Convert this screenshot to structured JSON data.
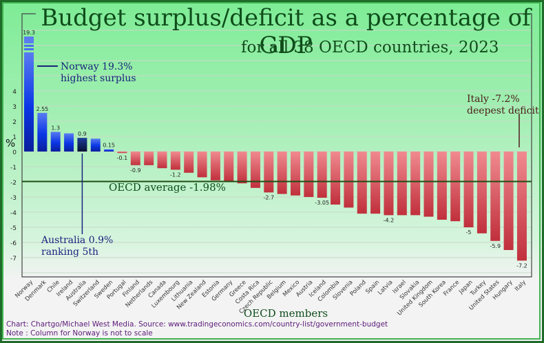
{
  "chart_data": {
    "type": "bar",
    "title": "Budget surplus/deficit as a percentage of GDP",
    "subtitle": "for all 38 OECD countries, 2023",
    "xlabel": "OECD members",
    "ylabel": "%",
    "ylim": [
      -8,
      5
    ],
    "yticks": [
      4,
      3,
      2,
      1,
      0,
      -1,
      -2,
      -3,
      -4,
      -5,
      -6,
      -7
    ],
    "grid": true,
    "categories": [
      "Norway",
      "Denmark",
      "Chile",
      "Ireland",
      "Australia",
      "Switzerland",
      "Sweden",
      "Portugal",
      "Finland",
      "Netherlands",
      "Canada",
      "Luxembourg",
      "Lithuania",
      "New Zealand",
      "Estonia",
      "Germany",
      "Greece",
      "Costa Rica",
      "Czech Republic",
      "Belgium",
      "Mexico",
      "Austria",
      "Iceland",
      "Colombia",
      "Slovenia",
      "Poland",
      "Spain",
      "Latvia",
      "Israel",
      "Slovakia",
      "United Kingdom",
      "South Korea",
      "France",
      "Japan",
      "Turkey",
      "United States",
      "Hungary",
      "Italy"
    ],
    "values": [
      19.3,
      2.55,
      1.3,
      1.2,
      0.9,
      0.85,
      0.15,
      -0.1,
      -0.9,
      -0.9,
      -1.1,
      -1.2,
      -1.4,
      -1.7,
      -1.9,
      -2.0,
      -2.1,
      -2.4,
      -2.7,
      -2.8,
      -2.9,
      -3.0,
      -3.05,
      -3.5,
      -3.7,
      -4.1,
      -4.1,
      -4.2,
      -4.2,
      -4.2,
      -4.3,
      -4.5,
      -4.6,
      -5.0,
      -5.4,
      -5.9,
      -6.5,
      -7.2
    ],
    "data_labels": {
      "Norway": "19.3",
      "Denmark": "2.55",
      "Chile": "1.3",
      "Australia": "0.9",
      "Sweden": "0.15",
      "Portugal": "-0.1",
      "Finland": "-0.9",
      "Luxembourg": "-1.2",
      "Czech Republic": "-2.7",
      "Iceland": "-3.05",
      "Latvia": "-4.2",
      "Japan": "-5",
      "United States": "-5.9",
      "Italy": "-7.2"
    },
    "highlight": "Australia",
    "broken_bar": "Norway",
    "reference_line": {
      "label": "OECD average -1.98%",
      "value": -1.98
    },
    "colors": {
      "positive": "#1a3fe0",
      "positive_highlight": "#0b1f5c",
      "negative": "#d9444f",
      "average_line": "#1f4d14",
      "grid": "#c8d8c8"
    },
    "annotations": [
      {
        "target": "Norway",
        "lines": [
          "Norway 19.3%",
          "highest surplus"
        ]
      },
      {
        "target": "Australia",
        "lines": [
          "Australia 0.9%",
          "ranking 5th"
        ]
      },
      {
        "target": "Italy",
        "lines": [
          "Italy -7.2%",
          "deepest deficit"
        ]
      }
    ]
  },
  "footer": {
    "credit": "Chart: Chartgo/Michael West Media. Source: www.tradingeconomics.com/country-list/government-budget",
    "note": "Note : Column for Norway is not to scale"
  }
}
